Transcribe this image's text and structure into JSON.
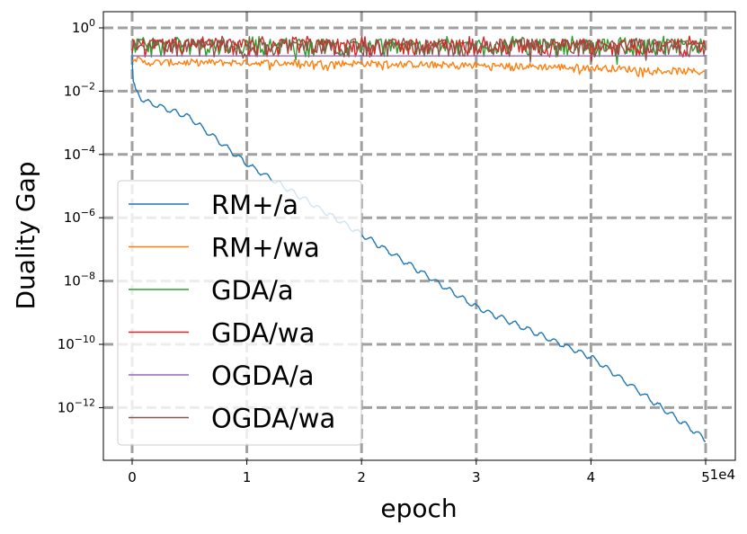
{
  "chart_data": {
    "type": "line",
    "xlabel": "epoch",
    "ylabel": "Duality Gap",
    "x_offset_label": "1e4",
    "x_ticks": [
      0,
      1,
      2,
      3,
      4,
      5
    ],
    "x_tick_labels": [
      "0",
      "1",
      "2",
      "3",
      "4",
      "5"
    ],
    "xlim": [
      -0.25,
      5.25
    ],
    "y_scale": "log",
    "ylim": [
      1e-14,
      3
    ],
    "y_ticks": [
      {
        "exp": "0"
      },
      {
        "exp": "−2"
      },
      {
        "exp": "−4"
      },
      {
        "exp": "−6"
      },
      {
        "exp": "−8"
      },
      {
        "exp": "−10"
      },
      {
        "exp": "−12"
      }
    ],
    "y_tick_base": "10",
    "grid": true,
    "legend_position": "lower-left",
    "series": [
      {
        "name": "RM+/a",
        "color": "#1f77b4",
        "x": [
          0,
          0.01,
          0.03,
          0.1,
          0.5,
          1,
          2,
          3,
          4,
          5
        ],
        "y": [
          0.2,
          0.02,
          0.01,
          0.005,
          0.0015,
          5e-05,
          3e-07,
          1.5e-09,
          4e-11,
          1e-13
        ]
      },
      {
        "name": "RM+/wa",
        "color": "#ff7f0e",
        "x": [
          0,
          0.1,
          1,
          2,
          3,
          4,
          5
        ],
        "y": [
          0.12,
          0.08,
          0.08,
          0.075,
          0.065,
          0.055,
          0.04
        ]
      },
      {
        "name": "GDA/a",
        "color": "#2ca02c",
        "x": [
          0,
          5
        ],
        "y": [
          0.25,
          0.25
        ]
      },
      {
        "name": "GDA/wa",
        "color": "#d62728",
        "x": [
          0,
          5
        ],
        "y": [
          0.25,
          0.25
        ]
      },
      {
        "name": "OGDA/a",
        "color": "#9467bd",
        "x": [
          0,
          5
        ],
        "y": [
          0.13,
          0.13
        ]
      },
      {
        "name": "OGDA/wa",
        "color": "#8c564b",
        "x": [
          0,
          5
        ],
        "y": [
          0.2,
          0.2
        ]
      }
    ]
  }
}
